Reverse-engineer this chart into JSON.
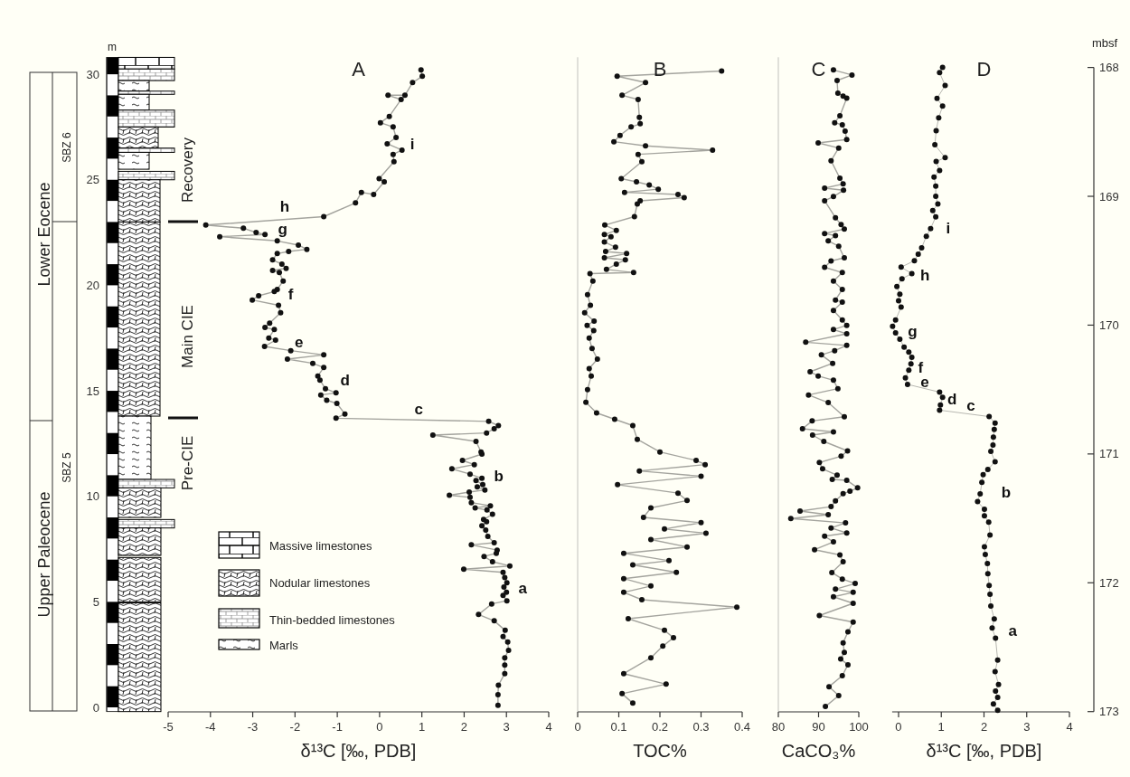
{
  "chart_data": [
    {
      "type": "line",
      "title": "A",
      "xlabel": "δ¹³C [‰, PDB]",
      "ylabel": "m",
      "xlim": [
        -5,
        4
      ],
      "xticks": [
        -5,
        -4,
        -3,
        -2,
        -1,
        0,
        1,
        2,
        3,
        4
      ],
      "ylim": [
        -0.2,
        30.8
      ],
      "yticks": [
        0,
        5,
        10,
        15,
        20,
        25,
        30
      ],
      "marker": "circle",
      "line_style": "solid",
      "series": [
        {
          "color": "#111111",
          "x": [
            0.98,
            1.01,
            0.78,
            0.6,
            0.2,
            0.51,
            0.23,
            0.02,
            0.32,
            0.39,
            0.18,
            0.53,
            0.32,
            0.34,
            -0.01,
            0.11,
            -0.14,
            -0.43,
            -0.57,
            -1.32,
            -4.11,
            -3.22,
            -2.92,
            -2.71,
            -3.78,
            -2.42,
            -1.92,
            -1.72,
            -2.15,
            -2.42,
            -2.53,
            -2.31,
            -2.21,
            -2.53,
            -2.37,
            -2.28,
            -2.42,
            -2.49,
            -2.86,
            -3.01,
            -2.39,
            -2.34,
            -2.6,
            -2.71,
            -2.49,
            -2.62,
            -2.46,
            -2.72,
            -2.1,
            -1.32,
            -2.18,
            -1.58,
            -1.32,
            -1.46,
            -1.41,
            -1.28,
            -1.03,
            -1.39,
            -1.25,
            -1.01,
            -0.82,
            -1.03,
            2.58,
            2.81,
            2.71,
            2.53,
            1.26,
            2.28,
            2.4,
            2.42,
            1.96,
            2.24,
            1.71,
            2.14,
            2.42,
            2.28,
            2.44,
            2.31,
            2.49,
            2.12,
            1.65,
            2.14,
            2.17,
            2.62,
            2.26,
            2.54,
            2.67,
            2.46,
            2.53,
            2.42,
            2.51,
            2.56,
            2.71,
            2.17,
            2.78,
            2.76,
            2.47,
            2.67,
            3.08,
            1.99,
            2.92,
            2.96,
            3.01,
            2.94,
            3.0,
            2.92,
            3.01,
            2.65,
            2.34,
            2.71,
            2.97,
            2.92,
            3.03,
            3.05,
            2.96,
            2.96,
            2.96,
            2.81,
            2.8,
            2.8
          ],
          "values": [
            30.2,
            29.9,
            29.6,
            29.0,
            29.0,
            28.8,
            28.0,
            27.7,
            27.5,
            27.0,
            26.7,
            26.4,
            26.2,
            25.85,
            25.05,
            24.9,
            24.3,
            24.4,
            23.9,
            23.25,
            22.85,
            22.7,
            22.5,
            22.4,
            22.3,
            22.1,
            21.9,
            21.7,
            21.6,
            21.5,
            21.2,
            21.0,
            20.8,
            20.7,
            20.6,
            20.2,
            19.8,
            19.7,
            19.5,
            19.3,
            19.05,
            18.7,
            18.2,
            18.0,
            17.9,
            17.5,
            17.4,
            17.1,
            16.9,
            16.7,
            16.5,
            16.3,
            16.1,
            15.7,
            15.5,
            15.1,
            14.9,
            14.8,
            14.55,
            14.4,
            13.9,
            13.7,
            13.55,
            13.35,
            13.2,
            13.0,
            12.9,
            12.6,
            12.1,
            12.0,
            11.7,
            11.5,
            11.3,
            11.05,
            10.85,
            10.75,
            10.55,
            10.45,
            10.3,
            10.2,
            10.05,
            9.95,
            9.7,
            9.55,
            9.45,
            9.35,
            9.15,
            8.9,
            8.8,
            8.6,
            8.4,
            8.1,
            7.8,
            7.7,
            7.45,
            7.3,
            7.15,
            6.9,
            6.7,
            6.55,
            6.4,
            6.15,
            5.9,
            5.7,
            5.45,
            5.3,
            5.05,
            4.9,
            4.4,
            4.1,
            3.65,
            3.35,
            3.1,
            2.7,
            2.35,
            2.0,
            1.6,
            1.05,
            0.6,
            0.1
          ]
        }
      ],
      "annotations": [
        "i",
        "h",
        "g",
        "f",
        "e",
        "d",
        "c",
        "b",
        "a",
        "Recovery",
        "Main CIE",
        "Pre-CIE",
        "Lower Eocene",
        "Upper Paleocene",
        "SBZ 6",
        "SBZ 5",
        "Massive limestones",
        "Nodular limestones",
        "Thin-bedded limestones",
        "Marls"
      ]
    },
    {
      "type": "line",
      "title": "B",
      "xlabel": "TOC%",
      "xlim": [
        0,
        0.4
      ],
      "xticks": [
        0,
        0.1,
        0.2,
        0.3,
        0.4
      ],
      "ylim": [
        -0.2,
        30.8
      ],
      "tick_labels": "x",
      "marker": "circle",
      "line_style": "solid",
      "series": [
        {
          "color": "#111111",
          "x": [
            0.35,
            0.096,
            0.165,
            0.108,
            0.147,
            0.15,
            0.152,
            0.13,
            0.103,
            0.088,
            0.165,
            0.328,
            0.147,
            0.156,
            0.106,
            0.143,
            0.174,
            0.196,
            0.114,
            0.244,
            0.259,
            0.152,
            0.145,
            0.138,
            0.066,
            0.094,
            0.065,
            0.081,
            0.065,
            0.092,
            0.068,
            0.119,
            0.065,
            0.116,
            0.094,
            0.07,
            0.136,
            0.03,
            0.037,
            0.024,
            0.031,
            0.017,
            0.04,
            0.023,
            0.039,
            0.028,
            0.035,
            0.048,
            0.028,
            0.033,
            0.024,
            0.02,
            0.046,
            0.09,
            0.134,
            0.145,
            0.2,
            0.288,
            0.31,
            0.15,
            0.3,
            0.097,
            0.244,
            0.266,
            0.178,
            0.16,
            0.3,
            0.211,
            0.312,
            0.178,
            0.266,
            0.112,
            0.222,
            0.134,
            0.24,
            0.112,
            0.178,
            0.112,
            0.156,
            0.387,
            0.123,
            0.211,
            0.233,
            0.207,
            0.178,
            0.112,
            0.215,
            0.108,
            0.134
          ],
          "values": [
            30.15,
            29.9,
            29.6,
            29.0,
            28.8,
            27.95,
            27.65,
            27.5,
            27.1,
            26.8,
            26.6,
            26.4,
            26.2,
            25.85,
            25.05,
            24.9,
            24.75,
            24.55,
            24.4,
            24.3,
            24.15,
            24.0,
            23.85,
            23.25,
            22.85,
            22.6,
            22.4,
            22.3,
            22.05,
            21.8,
            21.6,
            21.5,
            21.3,
            21.2,
            21.0,
            20.75,
            20.6,
            20.55,
            20.2,
            19.55,
            19.05,
            18.7,
            18.3,
            18.1,
            17.85,
            17.5,
            17.0,
            16.5,
            16.05,
            15.7,
            15.05,
            14.45,
            13.95,
            13.65,
            13.35,
            12.7,
            12.1,
            11.7,
            11.5,
            11.2,
            10.95,
            10.55,
            10.15,
            9.8,
            9.45,
            9.0,
            8.75,
            8.45,
            8.25,
            7.95,
            7.6,
            7.3,
            6.95,
            6.75,
            6.4,
            6.1,
            5.75,
            5.45,
            5.1,
            4.75,
            4.2,
            3.65,
            3.3,
            2.9,
            2.35,
            1.6,
            1.1,
            0.65,
            0.2
          ]
        }
      ]
    },
    {
      "type": "line",
      "title": "C",
      "xlabel": "CaCO₃%",
      "xlim": [
        80,
        100
      ],
      "xticks": [
        80,
        90,
        100
      ],
      "ylim": [
        -0.2,
        30.8
      ],
      "tick_labels": "x",
      "marker": "circle",
      "line_style": "solid",
      "series": [
        {
          "color": "#111111",
          "x": [
            93.7,
            98.3,
            94.6,
            94.8,
            96.1,
            97.0,
            95.3,
            94.0,
            95.9,
            96.6,
            97.0,
            89.9,
            95.0,
            93.1,
            95.3,
            96.1,
            91.5,
            96.2,
            93.7,
            91.5,
            94.2,
            95.6,
            96.4,
            91.5,
            94.2,
            92.4,
            95.0,
            96.4,
            93.1,
            91.5,
            95.9,
            93.7,
            95.9,
            94.2,
            95.9,
            93.7,
            95.9,
            97.0,
            93.7,
            97.0,
            86.8,
            97.0,
            94.0,
            90.7,
            93.5,
            87.9,
            89.9,
            93.7,
            94.8,
            87.5,
            92.4,
            96.4,
            88.4,
            86.0,
            93.7,
            88.5,
            91.3,
            97.2,
            95.6,
            90.2,
            91.0,
            94.6,
            93.4,
            97.0,
            99.7,
            97.8,
            96.1,
            94.2,
            93.1,
            85.4,
            92.4,
            83.1,
            96.7,
            93.1,
            97.0,
            91.5,
            93.7,
            89.0,
            95.3,
            96.1,
            93.3,
            95.9,
            99.1,
            94.2,
            98.6,
            93.7,
            98.6,
            90.2,
            98.6,
            97.3,
            96.1,
            96.4,
            95.5,
            97.3,
            95.9,
            92.6,
            95.0,
            91.7
          ],
          "values": [
            30.2,
            29.96,
            29.7,
            29.1,
            28.96,
            28.86,
            28.03,
            27.7,
            27.6,
            27.3,
            26.9,
            26.74,
            26.5,
            25.9,
            25.07,
            24.8,
            24.6,
            24.5,
            24.2,
            24.0,
            23.2,
            22.87,
            22.66,
            22.45,
            22.35,
            22.1,
            21.85,
            21.3,
            21.15,
            20.85,
            20.6,
            20.2,
            19.8,
            19.3,
            19.2,
            18.8,
            18.35,
            18.1,
            17.9,
            17.7,
            17.3,
            17.15,
            16.9,
            16.7,
            16.3,
            15.9,
            15.7,
            15.5,
            15.1,
            14.8,
            14.44,
            13.77,
            13.57,
            13.2,
            13.05,
            12.9,
            12.6,
            12.15,
            11.9,
            11.6,
            11.3,
            11.0,
            10.8,
            10.76,
            10.4,
            10.24,
            10.13,
            9.78,
            9.51,
            9.3,
            9.13,
            8.95,
            8.74,
            8.5,
            8.26,
            8.11,
            7.84,
            7.47,
            7.22,
            6.9,
            6.39,
            6.08,
            5.87,
            5.6,
            5.45,
            5.24,
            4.93,
            4.35,
            4.04,
            3.58,
            3.06,
            2.6,
            2.29,
            2.02,
            1.5,
            0.98,
            0.56,
            0.04
          ]
        }
      ]
    },
    {
      "type": "line",
      "title": "D",
      "xlabel": "δ¹³C [‰, PDB]",
      "y2label": "mbsf",
      "xlim": [
        -0.15,
        4
      ],
      "xticks": [
        0,
        1,
        2,
        3,
        4
      ],
      "y2lim": [
        173,
        168
      ],
      "y2ticks": [
        168,
        169,
        170,
        171,
        172,
        173
      ],
      "marker": "circle",
      "line_style": "solid",
      "series": [
        {
          "color": "#111111",
          "axis": "y2",
          "x": [
            1.03,
            0.96,
            1.09,
            0.9,
            1.03,
            0.94,
            0.88,
            0.85,
            1.09,
            0.88,
            0.96,
            0.83,
            0.87,
            0.87,
            0.92,
            0.8,
            0.87,
            0.75,
            0.65,
            0.54,
            0.46,
            0.37,
            0.06,
            0.31,
            0.08,
            -0.04,
            0.03,
            0.0,
            0.06,
            -0.07,
            -0.14,
            -0.07,
            0.03,
            0.13,
            0.24,
            0.31,
            0.29,
            0.24,
            0.16,
            0.21,
            0.96,
            1.03,
            0.98,
            0.96,
            2.12,
            2.26,
            2.24,
            2.22,
            2.21,
            2.16,
            2.26,
            2.09,
            1.98,
            1.95,
            1.91,
            1.85,
            2.01,
            2.01,
            2.11,
            2.14,
            2.01,
            2.03,
            2.08,
            2.09,
            2.12,
            2.14,
            2.16,
            2.24,
            2.19,
            2.27,
            2.32,
            2.26,
            2.34,
            2.27,
            2.32,
            2.22,
            2.32
          ],
          "values": [
            168.0,
            168.04,
            168.14,
            168.24,
            168.3,
            168.39,
            168.49,
            168.6,
            168.7,
            168.73,
            168.8,
            168.85,
            168.92,
            169.0,
            169.06,
            169.11,
            169.16,
            169.25,
            169.31,
            169.4,
            169.45,
            169.5,
            169.55,
            169.6,
            169.64,
            169.7,
            169.76,
            169.81,
            169.86,
            169.96,
            170.01,
            170.06,
            170.11,
            170.17,
            170.21,
            170.25,
            170.3,
            170.35,
            170.41,
            170.46,
            170.52,
            170.56,
            170.62,
            170.66,
            170.71,
            170.76,
            170.81,
            170.87,
            170.93,
            170.98,
            171.06,
            171.12,
            171.16,
            171.22,
            171.31,
            171.37,
            171.43,
            171.48,
            171.53,
            171.63,
            171.72,
            171.78,
            171.85,
            171.93,
            172.02,
            172.09,
            172.18,
            172.28,
            172.35,
            172.43,
            172.6,
            172.69,
            172.79,
            172.84,
            172.89,
            172.94,
            172.99
          ]
        }
      ],
      "annotations": [
        "i",
        "h",
        "g",
        "f",
        "e",
        "d",
        "c",
        "b",
        "a"
      ]
    }
  ]
}
